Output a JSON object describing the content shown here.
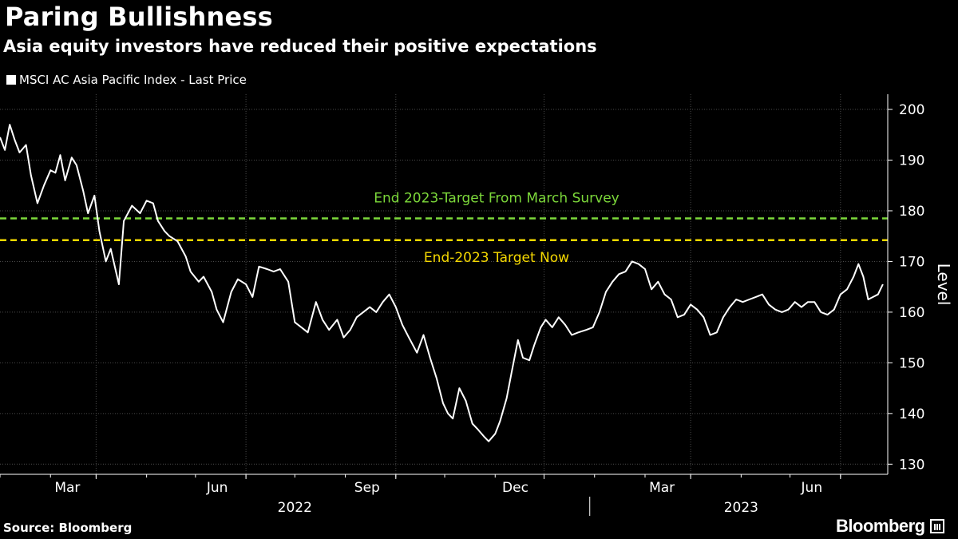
{
  "header": {
    "title": "Paring Bullishness",
    "subtitle": "Asia equity investors have reduced their positive expectations"
  },
  "legend": {
    "label": "MSCI AC Asia Pacific Index - Last Price"
  },
  "footer": {
    "source": "Source: Bloomberg",
    "brand": "Bloomberg"
  },
  "colors": {
    "background": "#000000",
    "line": "#ffffff",
    "grid": "#4a4a4a",
    "march_target": "#7cd83a",
    "target_now": "#f5d800"
  },
  "chart_data": {
    "type": "line",
    "title": "Paring Bullishness",
    "subtitle": "Asia equity investors have reduced their positive expectations",
    "ylabel": "Level",
    "xlabel": "",
    "ylim": [
      128,
      203
    ],
    "yticks": [
      130,
      140,
      150,
      160,
      170,
      180,
      190,
      200
    ],
    "xlim": [
      "2022-01-01",
      "2023-06-30"
    ],
    "month_ticks": [
      {
        "date": "2022-03-01",
        "label": "Mar"
      },
      {
        "date": "2022-06-01",
        "label": "Jun"
      },
      {
        "date": "2022-09-01",
        "label": "Sep"
      },
      {
        "date": "2022-12-01",
        "label": "Dec"
      },
      {
        "date": "2023-03-01",
        "label": "Mar"
      },
      {
        "date": "2023-06-01",
        "label": "Jun"
      }
    ],
    "year_labels": [
      {
        "center": "2022-07-01",
        "label": "2022"
      },
      {
        "center": "2023-04-01",
        "label": "2023"
      }
    ],
    "year_divider": "2023-01-01",
    "reference_lines": [
      {
        "name": "End 2023-Target From March Survey",
        "value": 178.5,
        "color": "#7cd83a"
      },
      {
        "name": "End-2023 Target Now",
        "value": 174.2,
        "color": "#f5d800"
      }
    ],
    "series": [
      {
        "name": "MSCI AC Asia Pacific Index - Last Price",
        "points": [
          [
            "2022-01-01",
            194.5
          ],
          [
            "2022-01-04",
            192.0
          ],
          [
            "2022-01-07",
            197.0
          ],
          [
            "2022-01-10",
            194.0
          ],
          [
            "2022-01-13",
            191.5
          ],
          [
            "2022-01-17",
            193.0
          ],
          [
            "2022-01-20",
            187.0
          ],
          [
            "2022-01-24",
            181.5
          ],
          [
            "2022-01-28",
            185.0
          ],
          [
            "2022-02-01",
            188.0
          ],
          [
            "2022-02-04",
            187.5
          ],
          [
            "2022-02-07",
            191.0
          ],
          [
            "2022-02-10",
            186.0
          ],
          [
            "2022-02-14",
            190.5
          ],
          [
            "2022-02-17",
            189.0
          ],
          [
            "2022-02-21",
            184.0
          ],
          [
            "2022-02-24",
            179.5
          ],
          [
            "2022-02-28",
            183.0
          ],
          [
            "2022-03-03",
            176.0
          ],
          [
            "2022-03-07",
            170.0
          ],
          [
            "2022-03-10",
            172.5
          ],
          [
            "2022-03-15",
            165.5
          ],
          [
            "2022-03-18",
            178.0
          ],
          [
            "2022-03-23",
            181.0
          ],
          [
            "2022-03-28",
            179.5
          ],
          [
            "2022-04-01",
            182.0
          ],
          [
            "2022-04-05",
            181.5
          ],
          [
            "2022-04-08",
            178.0
          ],
          [
            "2022-04-12",
            176.0
          ],
          [
            "2022-04-15",
            175.0
          ],
          [
            "2022-04-20",
            174.0
          ],
          [
            "2022-04-25",
            171.0
          ],
          [
            "2022-04-28",
            168.0
          ],
          [
            "2022-05-03",
            166.0
          ],
          [
            "2022-05-06",
            167.0
          ],
          [
            "2022-05-11",
            164.0
          ],
          [
            "2022-05-14",
            160.5
          ],
          [
            "2022-05-18",
            158.0
          ],
          [
            "2022-05-23",
            164.0
          ],
          [
            "2022-05-27",
            166.5
          ],
          [
            "2022-06-01",
            165.5
          ],
          [
            "2022-06-05",
            163.0
          ],
          [
            "2022-06-09",
            169.0
          ],
          [
            "2022-06-14",
            168.5
          ],
          [
            "2022-06-18",
            168.0
          ],
          [
            "2022-06-22",
            168.5
          ],
          [
            "2022-06-27",
            166.0
          ],
          [
            "2022-07-01",
            158.0
          ],
          [
            "2022-07-05",
            157.0
          ],
          [
            "2022-07-09",
            156.0
          ],
          [
            "2022-07-14",
            162.0
          ],
          [
            "2022-07-18",
            158.5
          ],
          [
            "2022-07-22",
            156.5
          ],
          [
            "2022-07-27",
            158.5
          ],
          [
            "2022-07-31",
            155.0
          ],
          [
            "2022-08-04",
            156.5
          ],
          [
            "2022-08-08",
            159.0
          ],
          [
            "2022-08-12",
            160.0
          ],
          [
            "2022-08-16",
            161.0
          ],
          [
            "2022-08-20",
            160.0
          ],
          [
            "2022-08-24",
            162.0
          ],
          [
            "2022-08-28",
            163.5
          ],
          [
            "2022-09-01",
            161.0
          ],
          [
            "2022-09-05",
            157.5
          ],
          [
            "2022-09-09",
            155.0
          ],
          [
            "2022-09-14",
            152.0
          ],
          [
            "2022-09-18",
            155.5
          ],
          [
            "2022-09-22",
            151.0
          ],
          [
            "2022-09-26",
            147.0
          ],
          [
            "2022-09-30",
            142.0
          ],
          [
            "2022-10-03",
            140.0
          ],
          [
            "2022-10-06",
            139.0
          ],
          [
            "2022-10-10",
            145.0
          ],
          [
            "2022-10-14",
            142.5
          ],
          [
            "2022-10-18",
            138.0
          ],
          [
            "2022-10-21",
            137.0
          ],
          [
            "2022-10-25",
            135.5
          ],
          [
            "2022-10-28",
            134.5
          ],
          [
            "2022-11-01",
            136.0
          ],
          [
            "2022-11-04",
            138.5
          ],
          [
            "2022-11-08",
            143.0
          ],
          [
            "2022-11-11",
            148.0
          ],
          [
            "2022-11-15",
            154.5
          ],
          [
            "2022-11-18",
            151.0
          ],
          [
            "2022-11-22",
            150.5
          ],
          [
            "2022-11-25",
            153.5
          ],
          [
            "2022-11-29",
            157.0
          ],
          [
            "2022-12-02",
            158.5
          ],
          [
            "2022-12-06",
            157.0
          ],
          [
            "2022-12-10",
            159.0
          ],
          [
            "2022-12-14",
            157.5
          ],
          [
            "2022-12-18",
            155.5
          ],
          [
            "2022-12-22",
            156.0
          ],
          [
            "2022-12-27",
            156.5
          ],
          [
            "2022-12-31",
            157.0
          ],
          [
            "2023-01-04",
            160.0
          ],
          [
            "2023-01-08",
            164.0
          ],
          [
            "2023-01-12",
            166.0
          ],
          [
            "2023-01-16",
            167.5
          ],
          [
            "2023-01-20",
            168.0
          ],
          [
            "2023-01-24",
            170.0
          ],
          [
            "2023-01-28",
            169.5
          ],
          [
            "2023-02-01",
            168.5
          ],
          [
            "2023-02-05",
            164.5
          ],
          [
            "2023-02-09",
            166.0
          ],
          [
            "2023-02-13",
            163.5
          ],
          [
            "2023-02-17",
            162.5
          ],
          [
            "2023-02-21",
            159.0
          ],
          [
            "2023-02-25",
            159.5
          ],
          [
            "2023-03-01",
            161.5
          ],
          [
            "2023-03-05",
            160.5
          ],
          [
            "2023-03-09",
            159.0
          ],
          [
            "2023-03-13",
            155.5
          ],
          [
            "2023-03-17",
            156.0
          ],
          [
            "2023-03-21",
            159.0
          ],
          [
            "2023-03-25",
            161.0
          ],
          [
            "2023-03-29",
            162.5
          ],
          [
            "2023-04-02",
            162.0
          ],
          [
            "2023-04-06",
            162.5
          ],
          [
            "2023-04-10",
            163.0
          ],
          [
            "2023-04-14",
            163.5
          ],
          [
            "2023-04-18",
            161.5
          ],
          [
            "2023-04-22",
            160.5
          ],
          [
            "2023-04-26",
            160.0
          ],
          [
            "2023-04-30",
            160.5
          ],
          [
            "2023-05-04",
            162.0
          ],
          [
            "2023-05-08",
            161.0
          ],
          [
            "2023-05-12",
            162.0
          ],
          [
            "2023-05-16",
            162.0
          ],
          [
            "2023-05-20",
            160.0
          ],
          [
            "2023-05-24",
            159.5
          ],
          [
            "2023-05-28",
            160.5
          ],
          [
            "2023-06-01",
            163.5
          ],
          [
            "2023-06-05",
            164.5
          ],
          [
            "2023-06-09",
            167.0
          ],
          [
            "2023-06-12",
            169.5
          ],
          [
            "2023-06-15",
            167.0
          ],
          [
            "2023-06-18",
            162.5
          ],
          [
            "2023-06-21",
            163.0
          ],
          [
            "2023-06-24",
            163.5
          ],
          [
            "2023-06-27",
            165.5
          ]
        ]
      }
    ]
  }
}
